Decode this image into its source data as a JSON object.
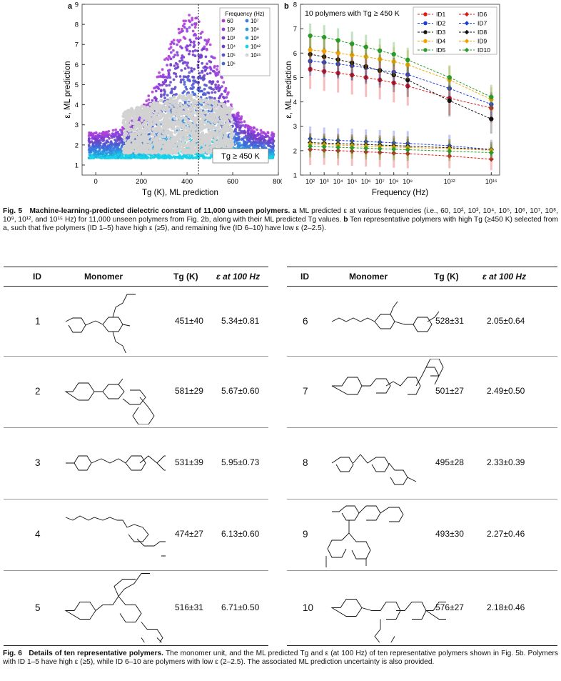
{
  "figure5": {
    "panel_a_letter": "a",
    "panel_b_letter": "b",
    "caption_label": "Fig. 5",
    "caption_title": "Machine-learning-predicted dielectric constant of 11,000 unseen polymers.",
    "caption_a": "a",
    "caption_text_1": "ML predicted ε at various frequencies (i.e., 60, 10², 10³, 10⁴, 10⁵, 10⁶, 10⁷, 10⁸, 10⁹, 10¹², and 10¹⁵ Hz) for 11,000 unseen polymers from Fig. 2b, along with their ML predicted Tg values.",
    "caption_b": "b",
    "caption_text_2": "Ten representative polymers with high Tg (≥450 K) selected from a, such that five polymers (ID 1–5) have high ε (≥5), and remaining five (ID 6–10) have low ε (2–2.5)."
  },
  "chart_data": [
    {
      "type": "scatter",
      "panel": "a",
      "xlabel": "Tg (K), ML prediction",
      "ylabel": "ε, ML prediction",
      "xlim": [
        -60,
        800
      ],
      "ylim": [
        0.5,
        9
      ],
      "xticks": [
        "0",
        "200",
        "400",
        "600",
        "800"
      ],
      "yticks": [
        "1",
        "2",
        "3",
        "4",
        "5",
        "6",
        "7",
        "8",
        "9"
      ],
      "legend_title": "Frequency (Hz)",
      "legend_position": "top-right",
      "legend": [
        "60",
        "10²",
        "10³",
        "10⁴",
        "10⁵",
        "10⁶",
        "10⁷",
        "10⁸",
        "10⁹",
        "10¹²",
        "10¹⁵"
      ],
      "reference_line_x": 450,
      "annotation": "Tg ≥ 450 K",
      "series_colors": [
        "#b03fd8",
        "#9040e0",
        "#7c3ad0",
        "#6a45c8",
        "#5555d0",
        "#4466d8",
        "#3a7ce0",
        "#2c96e0",
        "#20b0e0",
        "#18d0e8",
        "#d2d2d2"
      ],
      "cloud": {
        "x_range": [
          -30,
          780
        ],
        "peak_tg": 420,
        "peak_eps": 8.5
      }
    },
    {
      "type": "line",
      "panel": "b",
      "title": "10 polymers with Tg ≥ 450 K",
      "xlabel": "Frequency (Hz)",
      "ylabel": "ε, ML prediction",
      "ylim": [
        1,
        8
      ],
      "yticks": [
        "1",
        "2",
        "3",
        "4",
        "5",
        "6",
        "7",
        "8"
      ],
      "x": [
        "10²",
        "10³",
        "10⁴",
        "10⁵",
        "10⁶",
        "10⁷",
        "10⁸",
        "10⁹",
        "10¹²",
        "10¹⁵"
      ],
      "x_log10": [
        2,
        3,
        4,
        5,
        6,
        7,
        8,
        9,
        12,
        15
      ],
      "legend_position": "top-right",
      "series": [
        {
          "name": "ID1",
          "color": "#e01818",
          "marker": "circle",
          "values": [
            5.34,
            5.25,
            5.18,
            5.1,
            5.0,
            4.9,
            4.78,
            4.65,
            4.15,
            3.75
          ],
          "err": [
            0.81,
            0.8,
            0.8,
            0.8,
            0.8,
            0.8,
            0.8,
            0.8,
            0.7,
            0.6
          ]
        },
        {
          "name": "ID2",
          "color": "#1e3ce0",
          "marker": "circle",
          "values": [
            5.67,
            5.62,
            5.55,
            5.48,
            5.4,
            5.3,
            5.22,
            5.12,
            4.55,
            3.9
          ],
          "err": [
            0.6,
            0.6,
            0.6,
            0.6,
            0.6,
            0.6,
            0.6,
            0.6,
            0.55,
            0.5
          ]
        },
        {
          "name": "ID3",
          "color": "#111111",
          "marker": "circle",
          "values": [
            5.95,
            5.85,
            5.73,
            5.6,
            5.45,
            5.28,
            5.1,
            4.9,
            4.05,
            3.3
          ],
          "err": [
            0.73,
            0.73,
            0.73,
            0.72,
            0.72,
            0.7,
            0.7,
            0.7,
            0.65,
            0.6
          ]
        },
        {
          "name": "ID4",
          "color": "#f5a000",
          "marker": "circle",
          "values": [
            6.13,
            6.08,
            6.0,
            5.92,
            5.85,
            5.75,
            5.65,
            5.52,
            4.9,
            4.1
          ],
          "err": [
            0.6,
            0.6,
            0.6,
            0.6,
            0.6,
            0.6,
            0.6,
            0.6,
            0.55,
            0.5
          ]
        },
        {
          "name": "ID5",
          "color": "#2a9a2a",
          "marker": "circle",
          "values": [
            6.71,
            6.65,
            6.52,
            6.38,
            6.25,
            6.1,
            5.95,
            5.72,
            5.0,
            4.2
          ],
          "err": [
            0.5,
            0.5,
            0.5,
            0.5,
            0.5,
            0.5,
            0.5,
            0.5,
            0.5,
            0.5
          ]
        },
        {
          "name": "ID6",
          "color": "#e01818",
          "marker": "diamond",
          "values": [
            2.05,
            2.02,
            2.0,
            1.98,
            1.95,
            1.93,
            1.9,
            1.88,
            1.78,
            1.65
          ],
          "err": [
            0.64,
            0.6,
            0.6,
            0.6,
            0.6,
            0.6,
            0.6,
            0.6,
            0.5,
            0.45
          ]
        },
        {
          "name": "ID7",
          "color": "#1e3ce0",
          "marker": "diamond",
          "values": [
            2.49,
            2.45,
            2.42,
            2.4,
            2.37,
            2.35,
            2.32,
            2.3,
            2.2,
            2.05
          ],
          "err": [
            0.5,
            0.5,
            0.5,
            0.5,
            0.5,
            0.5,
            0.5,
            0.5,
            0.45,
            0.4
          ]
        },
        {
          "name": "ID8",
          "color": "#111111",
          "marker": "diamond",
          "values": [
            2.33,
            2.31,
            2.29,
            2.27,
            2.25,
            2.23,
            2.21,
            2.19,
            2.12,
            2.05
          ],
          "err": [
            0.39,
            0.39,
            0.39,
            0.39,
            0.39,
            0.39,
            0.39,
            0.39,
            0.35,
            0.3
          ]
        },
        {
          "name": "ID9",
          "color": "#f5a000",
          "marker": "diamond",
          "values": [
            2.27,
            2.25,
            2.23,
            2.21,
            2.19,
            2.17,
            2.15,
            2.13,
            2.08,
            2.02
          ],
          "err": [
            0.46,
            0.46,
            0.46,
            0.46,
            0.46,
            0.46,
            0.46,
            0.46,
            0.4,
            0.35
          ]
        },
        {
          "name": "ID10",
          "color": "#2a9a2a",
          "marker": "diamond",
          "values": [
            2.18,
            2.16,
            2.14,
            2.12,
            2.1,
            2.08,
            2.06,
            2.04,
            1.98,
            1.92
          ],
          "err": [
            0.46,
            0.46,
            0.46,
            0.46,
            0.46,
            0.46,
            0.46,
            0.46,
            0.4,
            0.35
          ]
        }
      ]
    }
  ],
  "table": {
    "headers": [
      "ID",
      "Monomer",
      "Tg (K)",
      "ε at 100 Hz",
      "ID",
      "Monomer",
      "Tg (K)",
      "ε at 100 Hz"
    ],
    "rows": [
      {
        "left": {
          "id": "1",
          "tg": "451±40",
          "eps": "5.34±0.81"
        },
        "right": {
          "id": "6",
          "tg": "528±31",
          "eps": "2.05±0.64"
        }
      },
      {
        "left": {
          "id": "2",
          "tg": "581±29",
          "eps": "5.67±0.60"
        },
        "right": {
          "id": "7",
          "tg": "501±27",
          "eps": "2.49±0.50"
        }
      },
      {
        "left": {
          "id": "3",
          "tg": "531±39",
          "eps": "5.95±0.73"
        },
        "right": {
          "id": "8",
          "tg": "495±28",
          "eps": "2.33±0.39"
        }
      },
      {
        "left": {
          "id": "4",
          "tg": "474±27",
          "eps": "6.13±0.60"
        },
        "right": {
          "id": "9",
          "tg": "493±30",
          "eps": "2.27±0.46"
        }
      },
      {
        "left": {
          "id": "5",
          "tg": "516±31",
          "eps": "6.71±0.50"
        },
        "right": {
          "id": "10",
          "tg": "576±27",
          "eps": "2.18±0.46"
        }
      }
    ]
  },
  "figure6": {
    "caption_label": "Fig. 6",
    "caption_title": "Details of ten representative polymers.",
    "caption_text": "The monomer unit, and the ML predicted Tg and ε (at 100 Hz) of ten representative polymers shown in Fig. 5b. Polymers with ID 1–5 have high ε (≥5), while ID 6–10 are polymers with low ε (2–2.5). The associated ML prediction uncertainty is also provided."
  }
}
